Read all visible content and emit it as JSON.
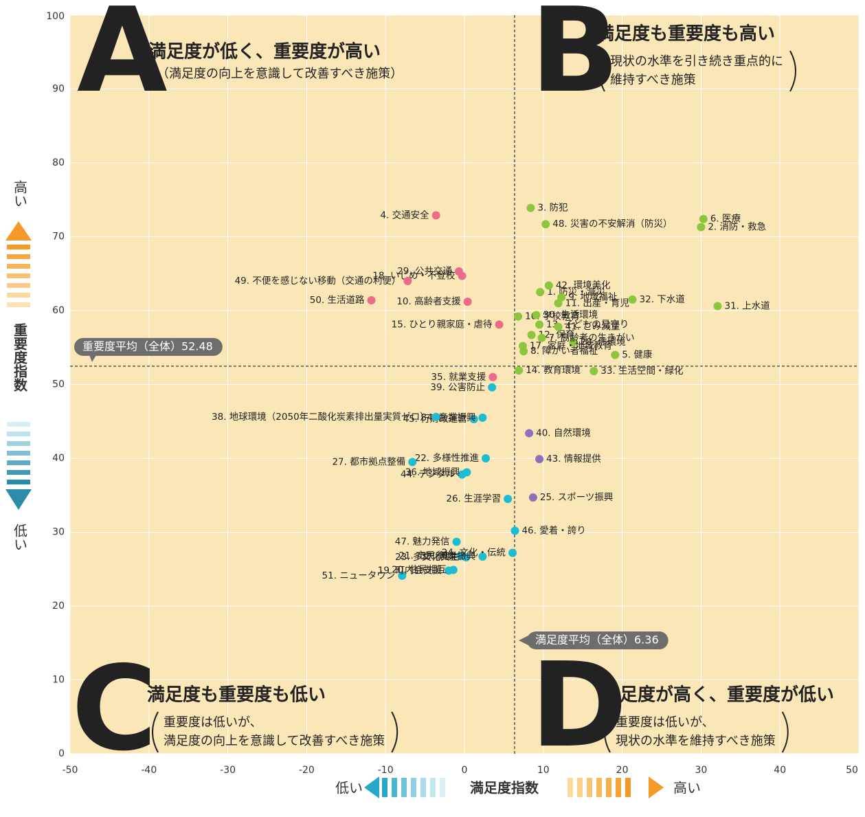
{
  "chart_data": {
    "type": "scatter",
    "xlim": [
      -50,
      50
    ],
    "xticks": [
      -50,
      -40,
      -30,
      -20,
      -10,
      0,
      10,
      20,
      30,
      40,
      50
    ],
    "ylim": [
      0,
      100
    ],
    "yticks": [
      0,
      10,
      20,
      30,
      40,
      50,
      60,
      70,
      80,
      90,
      100
    ],
    "grid": true,
    "background": "#fae6b6",
    "x_label": "満足度指数",
    "x_low": "低い",
    "x_high": "高い",
    "y_label": "重要度指数",
    "y_low": "低い",
    "y_high": "高い",
    "annotations": [
      {
        "axis": "y",
        "value": 52.48,
        "label": "重要度平均（全体）52.48"
      },
      {
        "axis": "x",
        "value": 6.36,
        "label": "満足度平均（全体）6.36"
      }
    ],
    "series": [
      {
        "name": "A",
        "color": "#ee6a8a",
        "title": "満足度が低く、重要度が高い",
        "subtitle": [
          "（満足度の向上を意識して改善すべき施策）"
        ],
        "labels": [
          "4. 交通安全",
          "29. 公共交通",
          "18. いじめ・不登校",
          "49. 不便を感じない移動（交通の利便）",
          "50. 生活道路",
          "10. 高齢者支援",
          "15. ひとり親家庭・虐待",
          "35. 就業支援"
        ],
        "x": [
          -3.6,
          -0.7,
          -0.3,
          -7.2,
          -11.8,
          0.4,
          4.4,
          3.6
        ],
        "values": [
          72.9,
          65.3,
          64.7,
          64.0,
          61.4,
          61.2,
          58.1,
          51.0
        ]
      },
      {
        "name": "B",
        "color": "#8cc63f",
        "title": "満足度も重要度も高い",
        "subtitle": [
          "現状の水準を引き続き重点的に",
          "維持すべき施策"
        ],
        "labels": [
          "16. 学校教育",
          "8. 障がい者福祉",
          "3. 防犯",
          "48. 災害の不安解消（防災）",
          "6. 医療",
          "2. 消防・救急",
          "1. 防災・減災",
          "42. 環境美化",
          "30. 生活環境",
          "9. 地域福祉",
          "11. 出産・育児",
          "12. 保育",
          "32. 下水道",
          "31. 上水道",
          "13. 子どもの見守り",
          "41. ごみ減量",
          "28. 住環境",
          "7. 高齢者の生きがい",
          "17. 家庭・地域教育",
          "5. 健康",
          "14. 教育環境",
          "33. 生活空間・緑化"
        ],
        "x": [
          6.8,
          7.5,
          8.4,
          10.3,
          30.3,
          30.0,
          9.6,
          10.7,
          9.1,
          12.3,
          11.9,
          8.5,
          21.3,
          32.1,
          9.5,
          11.9,
          13.8,
          9.8,
          7.4,
          19.1,
          6.9,
          16.4
        ],
        "values": [
          59.2,
          54.5,
          73.9,
          71.7,
          72.4,
          71.3,
          62.5,
          63.4,
          59.4,
          61.8,
          61.0,
          56.7,
          61.5,
          60.6,
          58.1,
          57.8,
          55.7,
          56.3,
          55.2,
          54.0,
          51.9,
          51.8
        ]
      },
      {
        "name": "C",
        "color": "#1ebcd3",
        "title": "満足度も重要度も低い",
        "subtitle": [
          "重要度は低いが、",
          "満足度の向上を意識して改善すべき施策"
        ],
        "labels": [
          "39. 公害防止",
          "45. 行財政運営",
          "34. 産業振興",
          "38. 地球環境（2050年二酸化炭素排出量実質ゼロ）",
          "22. 多様性推進",
          "27. 都市拠点整備",
          "44. デジタル",
          "36. 地域振興",
          "26. 生涯学習",
          "46. 愛着・誇り",
          "47. 魅力発信",
          "21. 市民参加",
          "51. ニュータウン",
          "19. 町内会支援",
          "20. 住民相互",
          "23. 多文化共生",
          "37. 農業振興",
          "24. 文化・伝統"
        ],
        "x": [
          3.5,
          1.2,
          2.3,
          -3.6,
          2.7,
          -6.6,
          -0.3,
          0.3,
          5.5,
          6.4,
          -1.0,
          -0.5,
          -7.9,
          -2.0,
          -1.4,
          0.2,
          2.3,
          6.1
        ],
        "values": [
          49.6,
          45.3,
          45.5,
          45.6,
          40.0,
          39.5,
          37.8,
          38.1,
          34.5,
          30.2,
          28.7,
          26.8,
          24.1,
          24.8,
          24.9,
          26.6,
          26.7,
          27.2
        ]
      },
      {
        "name": "D",
        "color": "#8e70b7",
        "title": "満足度が高く、重要度が低い",
        "subtitle": [
          "重要度は低いが、",
          "現状の水準を維持すべき施策"
        ],
        "labels": [
          "40. 自然環境",
          "43. 情報提供",
          "25. スポーツ振興"
        ],
        "x": [
          8.2,
          9.5,
          8.7
        ],
        "values": [
          43.4,
          39.9,
          34.7
        ]
      }
    ]
  }
}
